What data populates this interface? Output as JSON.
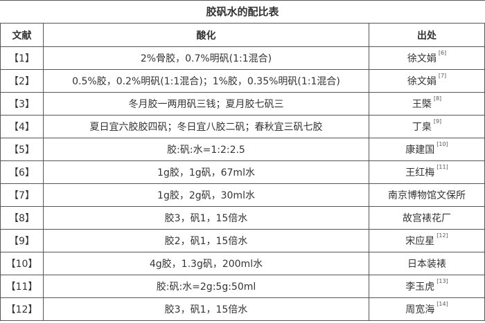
{
  "title": "胶矾水的配比表",
  "headers": [
    "文献",
    "酸化",
    "出处"
  ],
  "rows": [
    {
      "ref": "【1】",
      "ratio": "2%骨胶，0.7%明矾(1:1混合)",
      "source": "徐文娟",
      "cite": "[6]"
    },
    {
      "ref": "【2】",
      "ratio": "0.5%胶，0.2%明矾(1:1混合)；1%胶，0.35%明矾(1:1混合)",
      "source": "徐文娟",
      "cite": "[7]"
    },
    {
      "ref": "【3】",
      "ratio": "冬月胶一两用矾三钱；夏月胶七矾三",
      "source": "王槩",
      "cite": "[8]"
    },
    {
      "ref": "【4】",
      "ratio": "夏日宜六胶胶四矾；冬日宜八胶二矾；春秋宜三矾七胶",
      "source": "丁臬",
      "cite": "[9]"
    },
    {
      "ref": "【5】",
      "ratio": "胶:矾:水=1:2:2.5",
      "source": "康建国",
      "cite": "[10]"
    },
    {
      "ref": "【6】",
      "ratio": "1g胶，1g矾，67ml水",
      "source": "王红梅",
      "cite": "[11]"
    },
    {
      "ref": "【7】",
      "ratio": "1g胶，2g矾，30ml水",
      "source": "南京博物馆文保所",
      "cite": ""
    },
    {
      "ref": "【8】",
      "ratio": "胶3，矾1，15倍水",
      "source": "故宫裱花厂",
      "cite": ""
    },
    {
      "ref": "【9】",
      "ratio": "胶2，矾1，15倍水",
      "source": "宋应星",
      "cite": "[12]"
    },
    {
      "ref": "【10】",
      "ratio": "4g胶，1.3g矾，200ml水",
      "source": "日本装裱",
      "cite": ""
    },
    {
      "ref": "【11】",
      "ratio": "胶:矾:水=2g:5g:50ml",
      "source": "李玉虎",
      "cite": "[13]"
    },
    {
      "ref": "【12】",
      "ratio": "胶3，矾1，15倍水",
      "source": "周宽海",
      "cite": "[14]"
    }
  ]
}
